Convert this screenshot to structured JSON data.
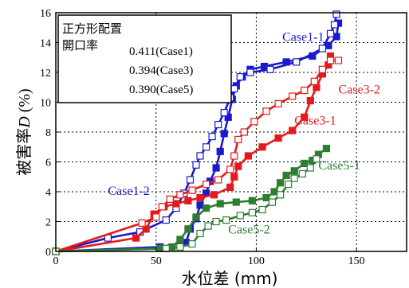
{
  "chart_data": {
    "type": "line",
    "xlabel": "水位差 (mm)",
    "ylabel_prefix": "被害率",
    "ylabel_var": "D",
    "ylabel_suffix": " (%)",
    "xlim": [
      0,
      175
    ],
    "ylim": [
      0,
      16
    ],
    "xticks": [
      0,
      50,
      100,
      150
    ],
    "yticks": [
      0,
      2,
      4,
      6,
      8,
      10,
      12,
      14,
      16
    ],
    "grid": "dotted",
    "legend_box": {
      "title": "正方形配置",
      "row_label": "開口率",
      "rows": [
        "0.411(Case1)",
        "0.394(Case3)",
        "0.390(Case5)"
      ],
      "placement": "top-left"
    },
    "series": [
      {
        "name": "Case1-1",
        "color": "#1a1acc",
        "filled": true,
        "points": [
          [
            0,
            0
          ],
          [
            52,
            0.3
          ],
          [
            65,
            0.6
          ],
          [
            67,
            1.5
          ],
          [
            70,
            2.2
          ],
          [
            72,
            3.1
          ],
          [
            75,
            3.9
          ],
          [
            77,
            4.7
          ],
          [
            80,
            5.6
          ],
          [
            82,
            6.7
          ],
          [
            84,
            7.9
          ],
          [
            86,
            9.0
          ],
          [
            88,
            10.2
          ],
          [
            90,
            11.1
          ],
          [
            93,
            11.7
          ],
          [
            97,
            12.2
          ],
          [
            104,
            12.4
          ],
          [
            115,
            12.7
          ],
          [
            128,
            13.1
          ],
          [
            136,
            13.8
          ],
          [
            140,
            14.4
          ],
          [
            141,
            15.3
          ]
        ]
      },
      {
        "name": "Case1-2",
        "color": "#1a1acc",
        "filled": false,
        "points": [
          [
            0,
            0
          ],
          [
            26,
            0.9
          ],
          [
            42,
            1.3
          ],
          [
            55,
            2.1
          ],
          [
            60,
            2.9
          ],
          [
            64,
            3.9
          ],
          [
            67,
            4.8
          ],
          [
            70,
            5.8
          ],
          [
            72,
            6.4
          ],
          [
            75,
            7.0
          ],
          [
            78,
            7.7
          ],
          [
            81,
            8.5
          ],
          [
            84,
            9.3
          ],
          [
            87,
            10.3
          ],
          [
            89,
            10.9
          ],
          [
            92,
            11.7
          ],
          [
            97,
            12.0
          ],
          [
            107,
            12.2
          ],
          [
            120,
            12.7
          ],
          [
            133,
            13.6
          ],
          [
            137,
            14.6
          ],
          [
            139,
            15.2
          ],
          [
            140,
            15.9
          ]
        ]
      },
      {
        "name": "Case3-1",
        "color": "#e31a1c",
        "filled": true,
        "points": [
          [
            0,
            0
          ],
          [
            40,
            0.9
          ],
          [
            45,
            1.5
          ],
          [
            49,
            2.5
          ],
          [
            54,
            3.0
          ],
          [
            60,
            3.2
          ],
          [
            66,
            3.4
          ],
          [
            72,
            3.6
          ],
          [
            79,
            3.8
          ],
          [
            87,
            4.3
          ],
          [
            89,
            5.0
          ],
          [
            91,
            5.7
          ],
          [
            96,
            6.4
          ],
          [
            103,
            7.0
          ],
          [
            111,
            7.6
          ],
          [
            118,
            8.1
          ],
          [
            124,
            9.0
          ],
          [
            127,
            10.1
          ],
          [
            130,
            11.0
          ],
          [
            133,
            11.9
          ],
          [
            136,
            12.5
          ],
          [
            137,
            13.1
          ]
        ]
      },
      {
        "name": "Case3-2",
        "color": "#e31a1c",
        "filled": false,
        "points": [
          [
            0,
            0
          ],
          [
            43,
            1.9
          ],
          [
            50,
            2.3
          ],
          [
            53,
            3.0
          ],
          [
            57,
            3.5
          ],
          [
            62,
            3.8
          ],
          [
            68,
            4.1
          ],
          [
            75,
            4.5
          ],
          [
            81,
            4.8
          ],
          [
            87,
            5.5
          ],
          [
            89,
            6.4
          ],
          [
            91,
            7.5
          ],
          [
            94,
            8.0
          ],
          [
            99,
            8.7
          ],
          [
            105,
            9.4
          ],
          [
            111,
            9.9
          ],
          [
            118,
            10.4
          ],
          [
            124,
            10.8
          ],
          [
            129,
            11.4
          ],
          [
            133,
            12.2
          ],
          [
            137,
            12.8
          ],
          [
            141,
            12.8
          ]
        ]
      },
      {
        "name": "Case5-1",
        "color": "#2e7d32",
        "filled": true,
        "points": [
          [
            0,
            0
          ],
          [
            52,
            0.2
          ],
          [
            58,
            0.3
          ],
          [
            62,
            0.8
          ],
          [
            66,
            1.5
          ],
          [
            70,
            2.3
          ],
          [
            75,
            2.9
          ],
          [
            82,
            3.2
          ],
          [
            90,
            3.3
          ],
          [
            98,
            3.4
          ],
          [
            105,
            3.6
          ],
          [
            109,
            4.0
          ],
          [
            112,
            4.6
          ],
          [
            115,
            5.1
          ],
          [
            119,
            5.4
          ],
          [
            124,
            5.9
          ],
          [
            128,
            6.1
          ],
          [
            131,
            6.5
          ],
          [
            135,
            6.9
          ]
        ]
      },
      {
        "name": "Case5-2",
        "color": "#2e7d32",
        "filled": false,
        "points": [
          [
            0,
            0
          ],
          [
            55,
            0.2
          ],
          [
            62,
            0.3
          ],
          [
            68,
            0.5
          ],
          [
            72,
            1.2
          ],
          [
            76,
            1.7
          ],
          [
            80,
            2.0
          ],
          [
            85,
            2.1
          ],
          [
            92,
            2.4
          ],
          [
            98,
            2.6
          ],
          [
            103,
            2.8
          ],
          [
            108,
            3.3
          ],
          [
            112,
            3.8
          ],
          [
            116,
            4.5
          ],
          [
            119,
            4.9
          ],
          [
            123,
            5.2
          ],
          [
            127,
            5.6
          ],
          [
            130,
            6.2
          ]
        ]
      }
    ],
    "series_labels": [
      {
        "text": "Case1-1",
        "color": "#1a1acc",
        "at": [
          113,
          14.1
        ]
      },
      {
        "text": "Case1-2",
        "color": "#1a1acc",
        "at": [
          26,
          3.8
        ]
      },
      {
        "text": "Case3-2",
        "color": "#e31a1c",
        "at": [
          141,
          10.6
        ]
      },
      {
        "text": "Case3-1",
        "color": "#e31a1c",
        "at": [
          119,
          8.5
        ]
      },
      {
        "text": "Case5-1",
        "color": "#2e7d32",
        "at": [
          131,
          5.5
        ]
      },
      {
        "text": "Case5-2",
        "color": "#2e7d32",
        "at": [
          86,
          1.2
        ]
      }
    ]
  }
}
